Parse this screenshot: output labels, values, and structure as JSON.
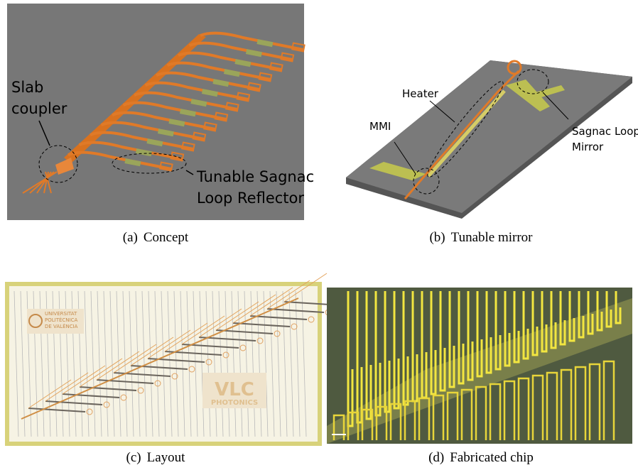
{
  "panels": [
    {
      "label": "(a)",
      "caption": "Concept",
      "annotations": [
        {
          "lines": [
            "Slab",
            "coupler"
          ]
        },
        {
          "lines": [
            "Tunable Sagnac",
            "Loop Reflector"
          ]
        }
      ]
    },
    {
      "label": "(b)",
      "caption": "Tunable mirror",
      "annotations": [
        {
          "lines": [
            "Heater"
          ]
        },
        {
          "lines": [
            "MMI"
          ]
        },
        {
          "lines": [
            "Sagnac Loop",
            "Mirror"
          ]
        }
      ]
    },
    {
      "label": "(c)",
      "caption": "Layout",
      "annotations": [
        {
          "lines": [
            "UNIVERSITAT",
            "POLITÈCNICA",
            "DE VALÈNCIA"
          ]
        },
        {
          "lines": [
            "VLC",
            "PHOTONICS"
          ]
        }
      ]
    },
    {
      "label": "(d)",
      "caption": "Fabricated chip",
      "annotations": []
    }
  ]
}
